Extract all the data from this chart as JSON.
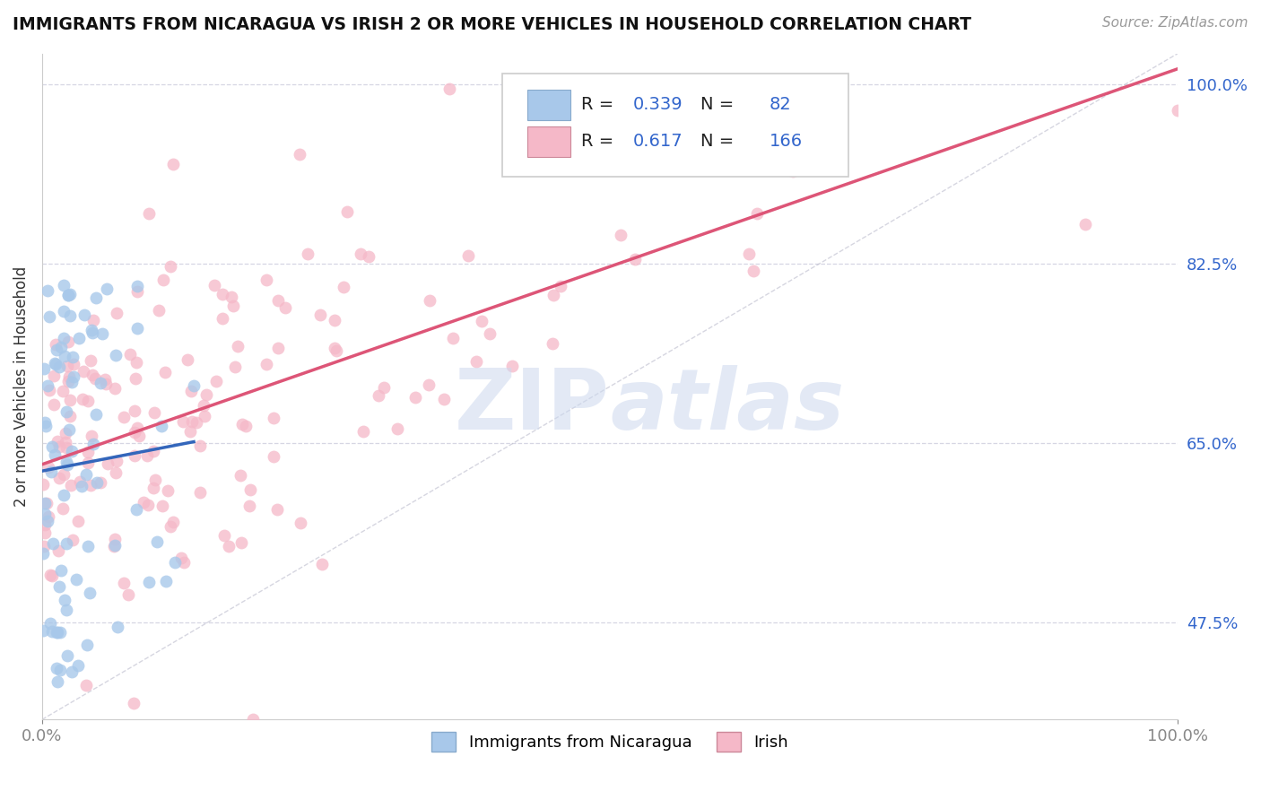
{
  "title": "IMMIGRANTS FROM NICARAGUA VS IRISH 2 OR MORE VEHICLES IN HOUSEHOLD CORRELATION CHART",
  "source": "Source: ZipAtlas.com",
  "ylabel": "2 or more Vehicles in Household",
  "right_yticks": [
    47.5,
    65.0,
    82.5,
    100.0
  ],
  "right_yticklabels": [
    "47.5%",
    "65.0%",
    "82.5%",
    "100.0%"
  ],
  "legend_blue_r": "0.339",
  "legend_blue_n": "82",
  "legend_pink_r": "0.617",
  "legend_pink_n": "166",
  "blue_color": "#a8c8ea",
  "pink_color": "#f5b8c8",
  "blue_line_color": "#3366bb",
  "pink_line_color": "#dd5577",
  "ref_line_color": "#bbbbcc",
  "background_color": "#ffffff",
  "xmin": 0.0,
  "xmax": 100.0,
  "ymin": 38.0,
  "ymax": 103.0,
  "grid_yticks": [
    47.5,
    65.0,
    82.5,
    100.0
  ],
  "watermark": "ZIPatlas",
  "watermark_color": "#ccd8ee"
}
